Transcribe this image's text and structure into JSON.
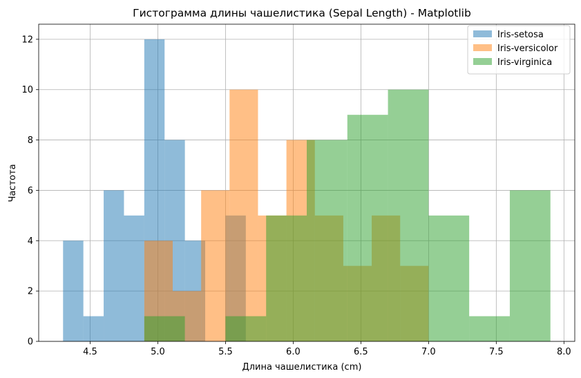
{
  "chart_data": {
    "type": "histogram",
    "title": "Гистограмма длины чашелистика (Sepal Length) - Matplotlib",
    "xlabel": "Длина чашелистика (cm)",
    "ylabel": "Частота",
    "xlim": [
      4.12,
      8.08
    ],
    "ylim": [
      0,
      12.6
    ],
    "xticks": [
      4.5,
      5.0,
      5.5,
      6.0,
      6.5,
      7.0,
      7.5,
      8.0
    ],
    "xtick_labels": [
      "4.5",
      "5.0",
      "5.5",
      "6.0",
      "6.5",
      "7.0",
      "7.5",
      "8.0"
    ],
    "yticks": [
      0,
      2,
      4,
      6,
      8,
      10,
      12
    ],
    "ytick_labels": [
      "0",
      "2",
      "4",
      "6",
      "8",
      "10",
      "12"
    ],
    "grid": true,
    "legend_position": "top-right",
    "series": [
      {
        "name": "Iris-setosa",
        "color": "#1f77b4",
        "alpha": 0.5,
        "bin_start": 4.3,
        "bin_width": 0.15,
        "counts": [
          4,
          1,
          6,
          5,
          12,
          8,
          4,
          0,
          5,
          0
        ]
      },
      {
        "name": "Iris-versicolor",
        "color": "#ff7f0e",
        "alpha": 0.5,
        "bin_start": 4.9,
        "bin_width": 0.21,
        "counts": [
          4,
          2,
          6,
          10,
          5,
          8,
          5,
          3,
          5,
          3
        ]
      },
      {
        "name": "Iris-virginica",
        "color": "#2ca02c",
        "alpha": 0.5,
        "bin_start": 4.9,
        "bin_width": 0.3,
        "counts": [
          1,
          0,
          1,
          5,
          8,
          9,
          10,
          5,
          1,
          6
        ]
      }
    ]
  }
}
